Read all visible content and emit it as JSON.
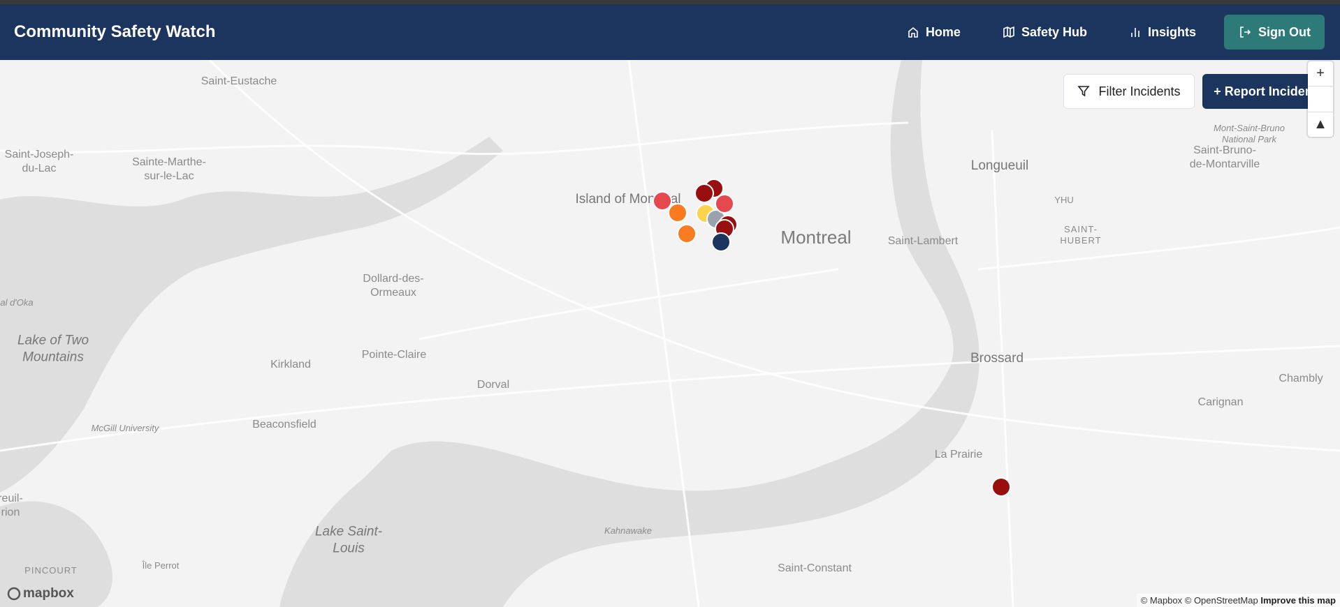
{
  "header": {
    "title": "Community Safety Watch",
    "nav": [
      {
        "label": "Home",
        "icon": "home-icon"
      },
      {
        "label": "Safety Hub",
        "icon": "map-icon"
      },
      {
        "label": "Insights",
        "icon": "bar-chart-icon"
      }
    ],
    "sign_out": "Sign Out"
  },
  "toolbar": {
    "filter": "Filter Incidents",
    "report": "+ Report Incident"
  },
  "map_controls": {
    "zoom_in": "+",
    "compass": "▲"
  },
  "labels": {
    "saint_eustache": "Saint-Eustache",
    "saint_joseph": "Saint-Joseph-\ndu-Lac",
    "sainte_marthe": "Sainte-Marthe-\nsur-le-Lac",
    "island": "Island of Montreal",
    "montreal": "Montreal",
    "longueuil": "Longueuil",
    "yhu": "YHU",
    "saint_hubert": "SAINT-\nHUBERT",
    "saint_lambert": "Saint-Lambert",
    "mont_saint_bruno": "Mont-Saint-Bruno\nNational Park",
    "saint_bruno": "Saint-Bruno-\nde-Montarville",
    "dollard": "Dollard-des-\nOrmeaux",
    "lake_two_mountains": "Lake of Two\nMountains",
    "pointe_claire": "Pointe-Claire",
    "kirkland": "Kirkland",
    "dorval": "Dorval",
    "beaconsfield": "Beaconsfield",
    "mcgill": "McGill University",
    "brossard": "Brossard",
    "chambly": "Chambly",
    "carignan": "Carignan",
    "la_prairie": "La Prairie",
    "kahnawake": "Kahnawake",
    "lake_saint_louis": "Lake Saint-\nLouis",
    "saint_constant": "Saint-Constant",
    "ile_perrot": "Île Perrot",
    "pincourt": "PINCOURT",
    "oka": "al d'Oka",
    "vaudreuil": "reuil-\nrion"
  },
  "markers": [
    {
      "color": "#e5484d"
    },
    {
      "color": "#f97a1f"
    },
    {
      "color": "#f97a1f"
    },
    {
      "color": "#fcd34d"
    },
    {
      "color": "#99a2ae"
    },
    {
      "color": "#990f0f"
    },
    {
      "color": "#990f0f"
    },
    {
      "color": "#e5484d"
    },
    {
      "color": "#990f0f"
    },
    {
      "color": "#990f0f"
    },
    {
      "color": "#1c355e"
    },
    {
      "color": "#990f0f"
    }
  ],
  "attribution": {
    "text": "© Mapbox © OpenStreetMap",
    "improve": "Improve this map"
  },
  "logo": "mapbox"
}
